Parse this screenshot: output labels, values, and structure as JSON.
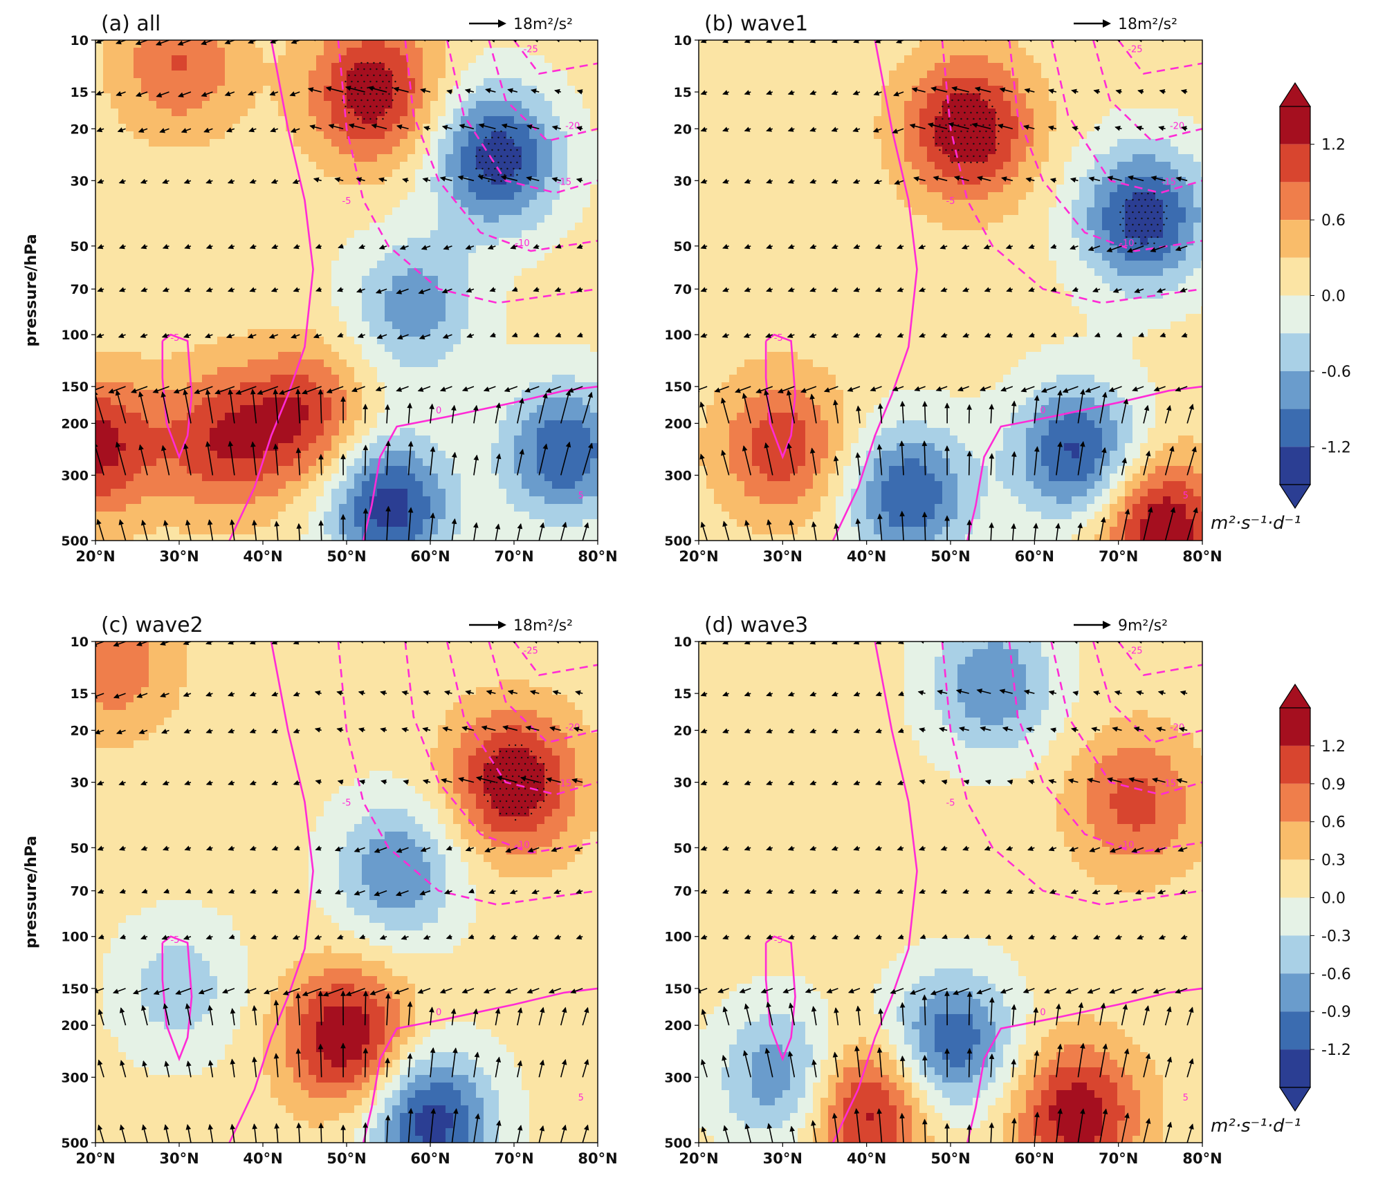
{
  "figure": {
    "x_ticks": [
      "20°N",
      "30°N",
      "40°N",
      "50°N",
      "60°N",
      "70°N",
      "80°N"
    ],
    "y_ticks": [
      "10",
      "15",
      "20",
      "30",
      "50",
      "70",
      "100",
      "150",
      "200",
      "300",
      "500"
    ],
    "ylabel": "pressure/hPa",
    "colorbar_units": "m²·s⁻¹·d⁻¹",
    "colorbars": [
      {
        "ticks": [
          "1.2",
          "0.6",
          "0.0",
          "-0.6",
          "-1.2"
        ],
        "range": [
          -1.5,
          1.5
        ]
      },
      {
        "ticks": [
          "1.2",
          "0.9",
          "0.6",
          "0.3",
          "0.0",
          "-0.3",
          "-0.6",
          "-0.9",
          "-1.2"
        ],
        "range": [
          -1.5,
          1.5
        ]
      }
    ],
    "colors": [
      "#2b3e93",
      "#3b6cb0",
      "#6a9ccc",
      "#a9d0e6",
      "#e5f2e6",
      "#fbe4a4",
      "#f9bc6a",
      "#ef7e4b",
      "#d8452f",
      "#a50f1f"
    ]
  },
  "chart_data": [
    {
      "type": "heatmap",
      "title": "(a) all",
      "arrow_scale_label": "18m²/s²",
      "x": [
        20,
        30,
        40,
        50,
        60,
        70,
        80
      ],
      "pressure_levels_hPa": [
        10,
        15,
        20,
        30,
        50,
        70,
        100,
        150,
        200,
        300,
        500
      ],
      "description_fields": {
        "positive_cores": [
          {
            "lat": 30,
            "p": 12,
            "v": 0.8
          },
          {
            "lat": 53,
            "p": 15,
            "v": 1.3
          },
          {
            "lat": 20,
            "p": 240,
            "v": 1.2
          },
          {
            "lat": 35,
            "p": 230,
            "v": 1.0
          },
          {
            "lat": 45,
            "p": 190,
            "v": 1.0
          }
        ],
        "negative_cores": [
          {
            "lat": 68,
            "p": 25,
            "v": -1.5
          },
          {
            "lat": 58,
            "p": 80,
            "v": -0.9
          },
          {
            "lat": 55,
            "p": 380,
            "v": -1.5
          },
          {
            "lat": 76,
            "p": 250,
            "v": -1.3
          }
        ]
      },
      "contour_labels": [
        "-5",
        "0",
        "-25",
        "-20",
        "-15",
        "-10",
        "-5",
        "5"
      ]
    },
    {
      "type": "heatmap",
      "title": "(b) wave1",
      "arrow_scale_label": "18m²/s²",
      "x": [
        20,
        30,
        40,
        50,
        60,
        70,
        80
      ],
      "pressure_levels_hPa": [
        10,
        15,
        20,
        30,
        50,
        70,
        100,
        150,
        200,
        300,
        500
      ],
      "description_fields": {
        "positive_cores": [
          {
            "lat": 52,
            "p": 20,
            "v": 1.4
          },
          {
            "lat": 30,
            "p": 240,
            "v": 1.0
          },
          {
            "lat": 75,
            "p": 450,
            "v": 1.4
          }
        ],
        "negative_cores": [
          {
            "lat": 73,
            "p": 40,
            "v": -1.5
          },
          {
            "lat": 45,
            "p": 350,
            "v": -1.3
          },
          {
            "lat": 65,
            "p": 250,
            "v": -1.4
          }
        ]
      },
      "contour_labels": [
        "-5",
        "0",
        "-25",
        "-20",
        "-15",
        "-10",
        "-5",
        "5"
      ]
    },
    {
      "type": "heatmap",
      "title": "(c) wave2",
      "arrow_scale_label": "18m²/s²",
      "x": [
        20,
        30,
        40,
        50,
        60,
        70,
        80
      ],
      "pressure_levels_hPa": [
        10,
        15,
        20,
        30,
        50,
        70,
        100,
        150,
        200,
        300,
        500
      ],
      "description_fields": {
        "positive_cores": [
          {
            "lat": 70,
            "p": 30,
            "v": 1.4
          },
          {
            "lat": 50,
            "p": 220,
            "v": 1.4
          },
          {
            "lat": 22,
            "p": 12,
            "v": 0.7
          }
        ],
        "negative_cores": [
          {
            "lat": 56,
            "p": 60,
            "v": -1.0
          },
          {
            "lat": 60,
            "p": 420,
            "v": -1.5
          },
          {
            "lat": 30,
            "p": 150,
            "v": -0.6
          }
        ]
      },
      "contour_labels": [
        "-5",
        "0",
        "-25",
        "-20",
        "-15",
        "-10",
        "-5",
        "5"
      ]
    },
    {
      "type": "heatmap",
      "title": "(d) wave3",
      "arrow_scale_label": "9m²/s²",
      "x": [
        20,
        30,
        40,
        50,
        60,
        70,
        80
      ],
      "pressure_levels_hPa": [
        10,
        15,
        20,
        30,
        50,
        70,
        100,
        150,
        200,
        300,
        500
      ],
      "description_fields": {
        "positive_cores": [
          {
            "lat": 72,
            "p": 35,
            "v": 0.9
          },
          {
            "lat": 40,
            "p": 380,
            "v": 1.3
          },
          {
            "lat": 65,
            "p": 400,
            "v": 1.3
          }
        ],
        "negative_cores": [
          {
            "lat": 55,
            "p": 14,
            "v": -1.0
          },
          {
            "lat": 50,
            "p": 230,
            "v": -1.3
          },
          {
            "lat": 30,
            "p": 300,
            "v": -1.0
          }
        ]
      },
      "contour_labels": [
        "-5",
        "0",
        "-25",
        "-20",
        "-15",
        "-10",
        "-5",
        "5"
      ]
    }
  ]
}
